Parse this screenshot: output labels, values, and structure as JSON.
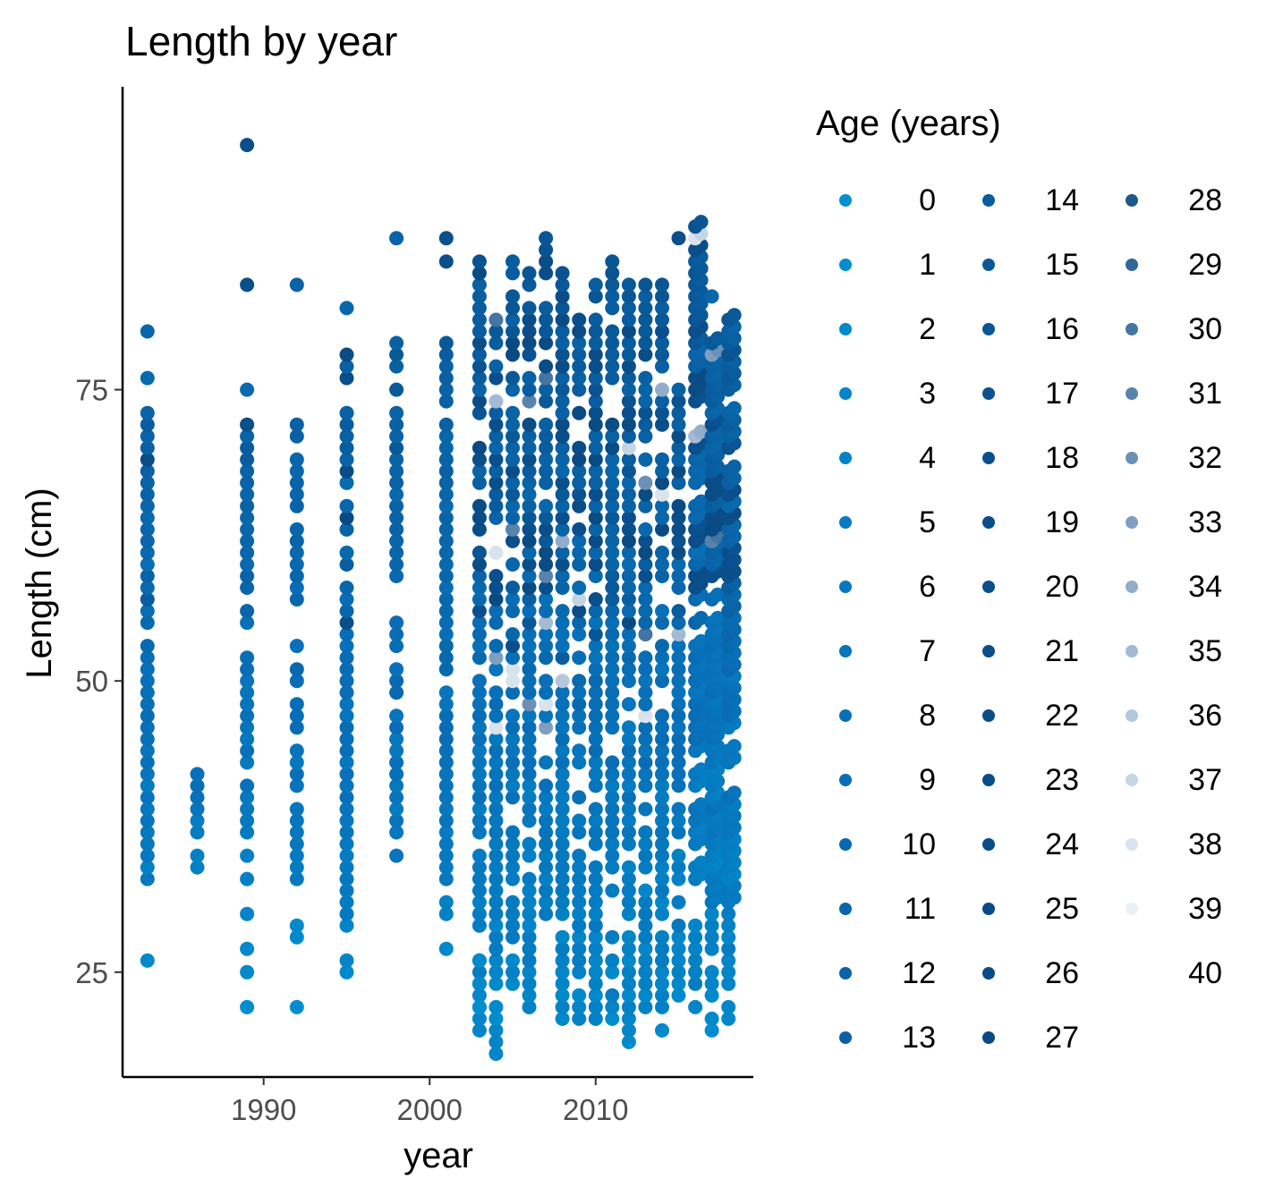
{
  "chart_data": {
    "type": "scatter",
    "title": "Length by year",
    "xlabel": "year",
    "ylabel": "Length (cm)",
    "xlim": [
      1981.5,
      2019.5
    ],
    "ylim": [
      16,
      101
    ],
    "xticks": [
      1990,
      2000,
      2010
    ],
    "yticks": [
      25,
      50,
      75
    ],
    "grid": false,
    "legend": {
      "title": "Age (years)",
      "placement": "right",
      "columns": 3,
      "entries": [
        "0",
        "1",
        "2",
        "3",
        "4",
        "5",
        "6",
        "7",
        "8",
        "9",
        "10",
        "11",
        "12",
        "13",
        "14",
        "15",
        "16",
        "17",
        "18",
        "19",
        "20",
        "21",
        "22",
        "23",
        "24",
        "25",
        "26",
        "27",
        "28",
        "29",
        "30",
        "31",
        "32",
        "33",
        "34",
        "35",
        "36",
        "37",
        "38",
        "39",
        "40"
      ]
    },
    "colors": {
      "age_0": "#0091d1",
      "age_8": "#0870b8",
      "age_18": "#0a4f8c",
      "age_27": "#0a4a82",
      "age_33": "#7f9fc0",
      "age_39": "#eaf0f6"
    },
    "columns_by_year": [
      {
        "year": 1983,
        "min": 33,
        "max": 73,
        "extra": [
          26,
          76,
          80
        ],
        "older": [
          57,
          69
        ]
      },
      {
        "year": 1986,
        "min": 34,
        "max": 42,
        "extra": [],
        "older": []
      },
      {
        "year": 1989,
        "min": 33,
        "max": 72,
        "extra": [
          22,
          25,
          27,
          30,
          75,
          84,
          96
        ],
        "older": [
          72,
          84,
          96
        ]
      },
      {
        "year": 1992,
        "min": 33,
        "max": 72,
        "extra": [
          22,
          28,
          29,
          84
        ],
        "older": []
      },
      {
        "year": 1995,
        "min": 25,
        "max": 78,
        "extra": [
          82
        ],
        "older": [
          55,
          60,
          64,
          68,
          74,
          76,
          78
        ]
      },
      {
        "year": 1998,
        "min": 35,
        "max": 79,
        "extra": [
          88
        ],
        "older": [
          70,
          74
        ]
      },
      {
        "year": 2001,
        "min": 30,
        "max": 79,
        "extra": [
          27,
          86,
          88
        ],
        "older": [
          86,
          88
        ]
      },
      {
        "year": 2003,
        "min": 20,
        "max": 86,
        "extra": [
          22,
          24,
          26
        ],
        "older": [
          56,
          60,
          65,
          70,
          74,
          79
        ]
      },
      {
        "year": 2004,
        "min": 18,
        "max": 81,
        "extra": [],
        "older": [
          52,
          58,
          66,
          72,
          76
        ]
      },
      {
        "year": 2005,
        "min": 24,
        "max": 86,
        "extra": [],
        "older": [
          53,
          61,
          66,
          71,
          78,
          86
        ]
      },
      {
        "year": 2006,
        "min": 22,
        "max": 85,
        "extra": [],
        "older": [
          55,
          62,
          68,
          74,
          80
        ]
      },
      {
        "year": 2007,
        "min": 30,
        "max": 88,
        "extra": [],
        "older": [
          58,
          64,
          70,
          76,
          88
        ]
      },
      {
        "year": 2008,
        "min": 21,
        "max": 85,
        "extra": [],
        "older": [
          52,
          60,
          67,
          72,
          78,
          82
        ]
      },
      {
        "year": 2009,
        "min": 21,
        "max": 81,
        "extra": [],
        "older": [
          56,
          63,
          70,
          77
        ]
      },
      {
        "year": 2010,
        "min": 21,
        "max": 84,
        "extra": [],
        "older": [
          54,
          60,
          66,
          72,
          80
        ]
      },
      {
        "year": 2011,
        "min": 21,
        "max": 86,
        "extra": [],
        "older": [
          58,
          64,
          70,
          75,
          84
        ]
      },
      {
        "year": 2012,
        "min": 19,
        "max": 84,
        "extra": [],
        "older": [
          55,
          62,
          68,
          74,
          80
        ]
      },
      {
        "year": 2013,
        "min": 22,
        "max": 84,
        "extra": [],
        "older": [
          60,
          66,
          72,
          78,
          84
        ]
      },
      {
        "year": 2014,
        "min": 20,
        "max": 84,
        "extra": [],
        "older": [
          58,
          63,
          70,
          76
        ]
      },
      {
        "year": 2015,
        "min": 23,
        "max": 75,
        "extra": [
          88
        ],
        "older": [
          56,
          62,
          68,
          74,
          88
        ]
      },
      {
        "year": 2016,
        "min": 22,
        "max": 89,
        "extra": [],
        "older": [
          56,
          62,
          66,
          72,
          80,
          86,
          89
        ]
      },
      {
        "year": 2017,
        "min": 20,
        "max": 79,
        "extra": [
          83
        ],
        "older": [
          58,
          64,
          68,
          72
        ]
      },
      {
        "year": 2018,
        "min": 21,
        "max": 81,
        "extra": [],
        "older": [
          60,
          66,
          70,
          74,
          78
        ]
      }
    ]
  }
}
